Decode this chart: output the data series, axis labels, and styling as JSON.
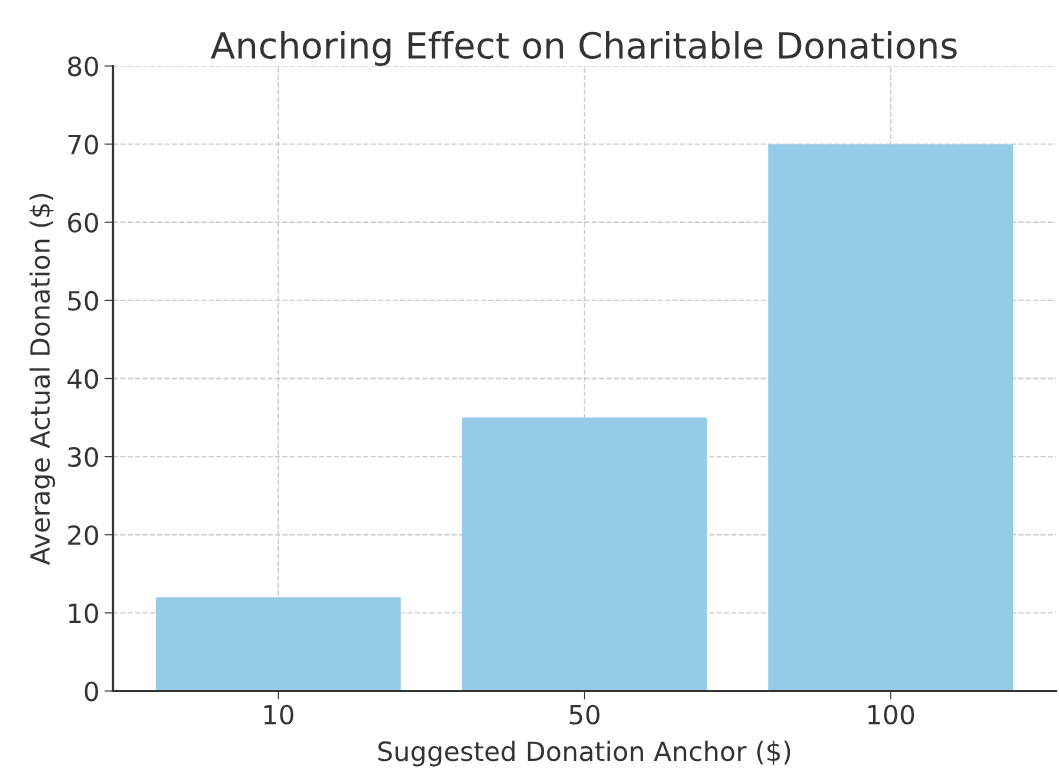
{
  "chart_data": {
    "type": "bar",
    "title": "Anchoring Effect on Charitable Donations",
    "xlabel": "Suggested Donation Anchor ($)",
    "ylabel": "Average Actual Donation ($)",
    "categories": [
      "10",
      "50",
      "100"
    ],
    "values": [
      12,
      35,
      70
    ],
    "color": "#95cbe6",
    "ylim": [
      0,
      80
    ],
    "yticks": [
      0,
      10,
      20,
      30,
      40,
      50,
      60,
      70,
      80
    ],
    "grid": true
  }
}
